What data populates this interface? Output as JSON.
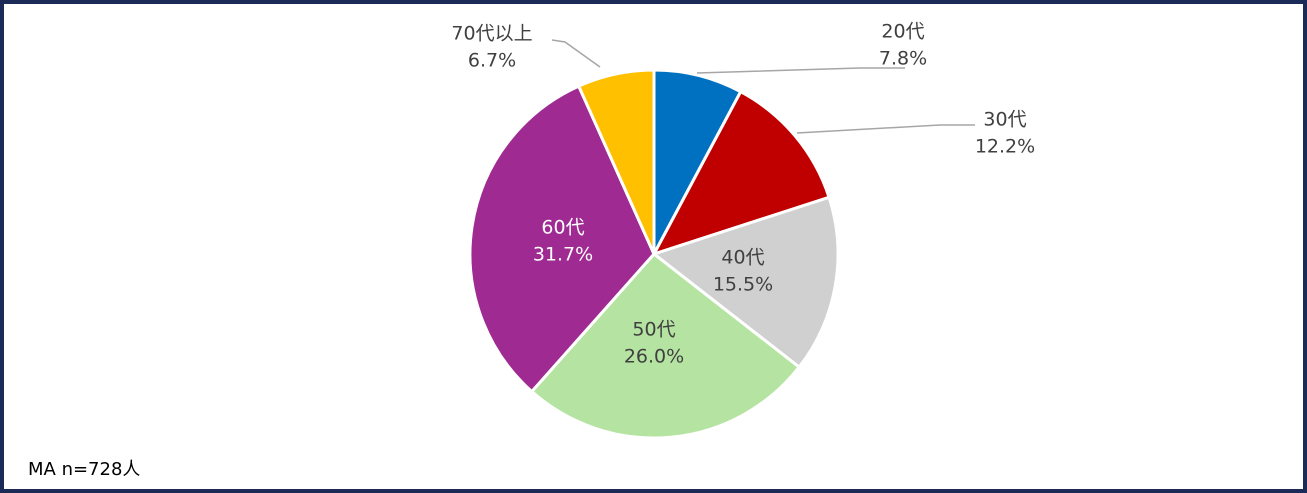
{
  "chart_data": {
    "type": "pie",
    "categories": [
      "20代",
      "30代",
      "40代",
      "50代",
      "60代",
      "70代以上"
    ],
    "values": [
      7.8,
      12.2,
      15.5,
      26.0,
      31.7,
      6.7
    ],
    "value_labels": [
      "7.8%",
      "12.2%",
      "15.5%",
      "26.0%",
      "31.7%",
      "6.7%"
    ],
    "colors": [
      "#0070c0",
      "#c00000",
      "#d0d0d0",
      "#b5e3a1",
      "#9e2a92",
      "#ffc000"
    ],
    "annotation": "MA n=728人"
  }
}
